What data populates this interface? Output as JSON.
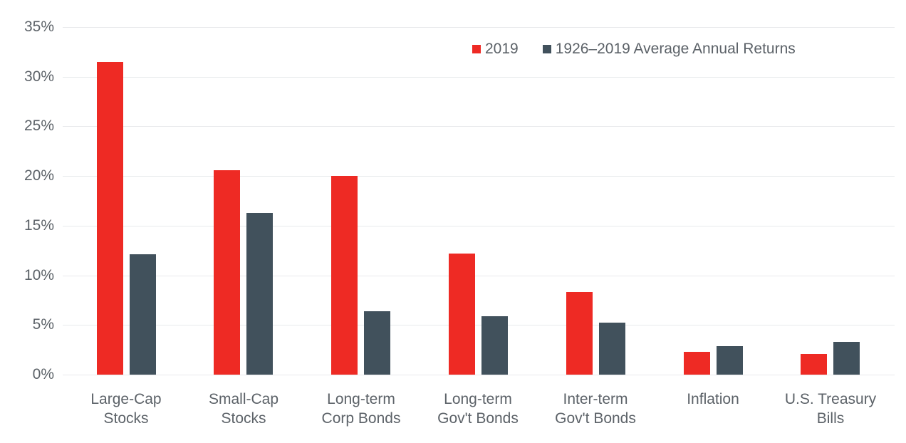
{
  "chart_data": {
    "type": "bar",
    "title": "",
    "xlabel": "",
    "ylabel": "",
    "ylim": [
      0,
      35
    ],
    "ytick_step": 5,
    "ytick_labels": [
      "0%",
      "5%",
      "10%",
      "15%",
      "20%",
      "25%",
      "30%",
      "35%"
    ],
    "grid": true,
    "legend_position": "top-right",
    "categories": [
      "Large-Cap Stocks",
      "Small-Cap Stocks",
      "Long-term Corp Bonds",
      "Long-term Gov't Bonds",
      "Inter-term Gov't Bonds",
      "Inflation",
      "U.S. Treasury Bills"
    ],
    "category_label_lines": [
      [
        "Large-Cap",
        "Stocks"
      ],
      [
        "Small-Cap",
        "Stocks"
      ],
      [
        "Long-term",
        "Corp Bonds"
      ],
      [
        "Long-term",
        "Gov't Bonds"
      ],
      [
        "Inter-term",
        "Gov't Bonds"
      ],
      [
        "Inflation"
      ],
      [
        "U.S. Treasury",
        "Bills"
      ]
    ],
    "series": [
      {
        "name": "2019",
        "color": "#ee2a24",
        "values": [
          31.5,
          20.6,
          20.0,
          12.2,
          8.3,
          2.3,
          2.1
        ]
      },
      {
        "name": "1926–2019 Average Annual Returns",
        "color": "#41515c",
        "values": [
          12.1,
          16.3,
          6.4,
          5.9,
          5.2,
          2.9,
          3.3
        ]
      }
    ]
  },
  "colors": {
    "series_2019": "#ee2a24",
    "series_average": "#41515c",
    "axis_text": "#5c6268",
    "gridline": "#e8eaec",
    "background": "#ffffff"
  }
}
